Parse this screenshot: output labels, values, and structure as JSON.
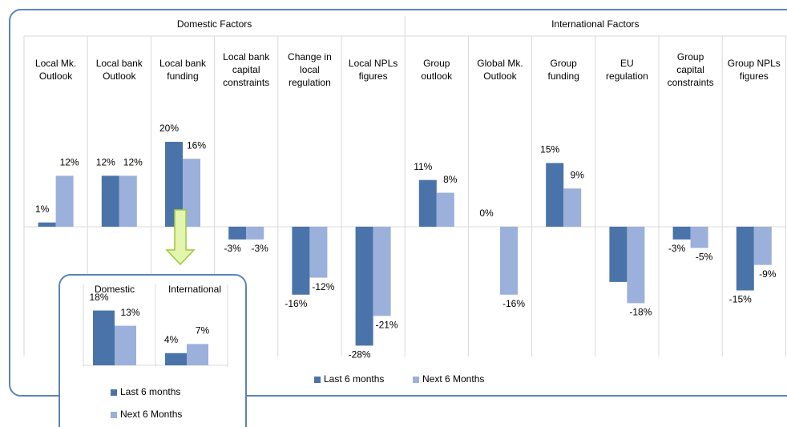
{
  "chart_data": [
    {
      "type": "bar",
      "group_labels": [
        "Domestic Factors",
        "International Factors"
      ],
      "categories": [
        "Local Mk.\nOutlook",
        "Local bank\nOutlook",
        "Local bank\nfunding",
        "Local bank\ncapital\nconstraints",
        "Change in\nlocal\nregulation",
        "Local NPLs\nfigures",
        "Group\noutlook",
        "Global Mk.\nOutlook",
        "Group\nfunding",
        "EU\nregulation",
        "Group\ncapital\nconstraints",
        "Group NPLs\nfigures"
      ],
      "series": [
        {
          "name": "Last 6 months",
          "color": "#4a73aa",
          "values": [
            1,
            12,
            20,
            -3,
            -16,
            -28,
            11,
            0,
            15,
            -13,
            -3,
            -15
          ],
          "value_labels": [
            "1%",
            "12%",
            "20%",
            "-3%",
            "-16%",
            "-28%",
            "11%",
            "0%",
            "15%",
            null,
            "-3%",
            "-15%"
          ]
        },
        {
          "name": "Next 6 Months",
          "color": "#9bb0da",
          "values": [
            12,
            12,
            16,
            -3,
            -12,
            -21,
            8,
            -16,
            9,
            -18,
            -5,
            -9
          ],
          "value_labels": [
            "12%",
            "12%",
            "16%",
            "-3%",
            "-12%",
            "-21%",
            "8%",
            "-16%",
            "9%",
            "-18%",
            "-5%",
            "-9%"
          ]
        }
      ]
    },
    {
      "type": "bar",
      "categories": [
        "Domestic",
        "International"
      ],
      "series": [
        {
          "name": "Last 6 months",
          "color": "#4a73aa",
          "values": [
            18,
            4
          ],
          "value_labels": [
            "18%",
            "4%"
          ]
        },
        {
          "name": "Next 6 Months",
          "color": "#9bb0da",
          "values": [
            13,
            7
          ],
          "value_labels": [
            "13%",
            "7%"
          ]
        }
      ]
    }
  ]
}
